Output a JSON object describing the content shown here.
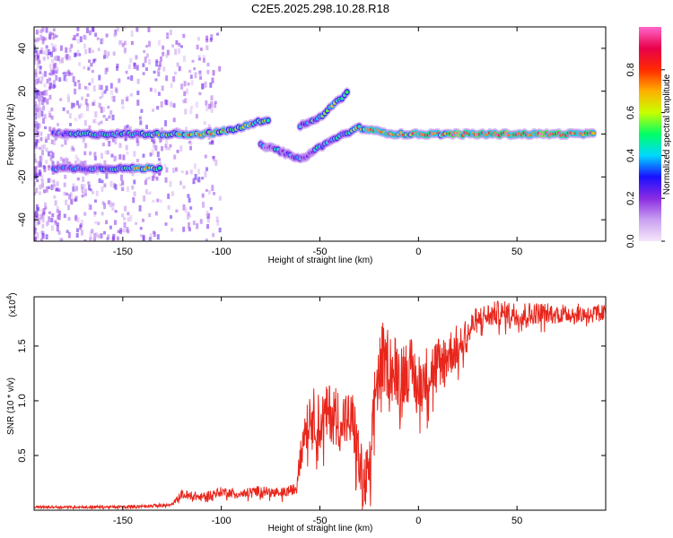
{
  "title": "C2E5.2025.298.10.28.R18",
  "chart_data": [
    {
      "type": "heatmap",
      "name": "spectrogram",
      "xlabel": "Height of straight line (km)",
      "ylabel": "Frequency (Hz)",
      "xlim": [
        -195,
        95
      ],
      "ylim": [
        -50,
        50
      ],
      "xticks": [
        -150,
        -100,
        -50,
        0,
        50
      ],
      "xtick_labels": [
        "-150",
        "-100",
        "-50",
        "0",
        "50"
      ],
      "yticks": [
        -40,
        -20,
        0,
        20,
        40
      ],
      "ytick_labels": [
        "-40",
        "-20",
        "0",
        "20",
        "40"
      ],
      "colorbar": {
        "label": "Normalized spectral amplitude",
        "range": [
          0,
          1
        ],
        "ticks": [
          0,
          0.2,
          0.4,
          0.6,
          0.8
        ],
        "tick_labels": [
          "0.0",
          "0.2",
          "0.4",
          "0.6",
          "0.8"
        ],
        "colors": [
          "#f6e6fa",
          "#c9a0f0",
          "#8a2be2",
          "#1a10ff",
          "#00d8ff",
          "#00ff66",
          "#c8ff00",
          "#ffb000",
          "#ff2a00",
          "#e8004a",
          "#ff66cc"
        ]
      },
      "tracks": [
        {
          "name": "main-carrier",
          "points": [
            [
              -185,
              0,
              0.3
            ],
            [
              -175,
              0,
              0.4
            ],
            [
              -165,
              0,
              0.45
            ],
            [
              -155,
              0,
              0.35
            ],
            [
              -140,
              0,
              0.4
            ],
            [
              -130,
              0,
              0.55
            ],
            [
              -120,
              0,
              0.6
            ],
            [
              -110,
              0,
              0.7
            ],
            [
              -100,
              1,
              0.65
            ],
            [
              -90,
              3,
              0.6
            ],
            [
              -80,
              6,
              0.55
            ],
            [
              -75,
              7,
              0.5
            ]
          ]
        },
        {
          "name": "lower-tone",
          "points": [
            [
              -185,
              -16,
              0.3
            ],
            [
              -175,
              -16,
              0.35
            ],
            [
              -165,
              -16,
              0.3
            ],
            [
              -150,
              -16,
              0.5
            ],
            [
              -140,
              -16,
              0.65
            ],
            [
              -130,
              -16,
              0.55
            ]
          ]
        },
        {
          "name": "rising-branch",
          "points": [
            [
              -60,
              4,
              0.35
            ],
            [
              -50,
              8,
              0.45
            ],
            [
              -45,
              12,
              0.5
            ],
            [
              -40,
              16,
              0.55
            ],
            [
              -35,
              20,
              0.5
            ]
          ]
        },
        {
          "name": "falling-branch",
          "points": [
            [
              -80,
              -5,
              0.3
            ],
            [
              -70,
              -8,
              0.35
            ],
            [
              -60,
              -12,
              0.3
            ],
            [
              -50,
              -6,
              0.35
            ],
            [
              -40,
              -1,
              0.4
            ],
            [
              -30,
              3,
              0.6
            ],
            [
              -20,
              1,
              0.75
            ],
            [
              -10,
              0,
              0.7
            ],
            [
              0,
              0,
              0.8
            ],
            [
              10,
              0,
              0.65
            ],
            [
              20,
              0,
              0.9
            ],
            [
              30,
              0,
              0.85
            ],
            [
              40,
              0,
              0.9
            ],
            [
              50,
              0,
              0.8
            ],
            [
              60,
              0,
              0.85
            ],
            [
              70,
              0,
              0.9
            ],
            [
              80,
              0,
              0.8
            ],
            [
              90,
              0,
              0.8
            ]
          ]
        }
      ]
    },
    {
      "type": "line",
      "name": "snr",
      "xlabel": "Height of straight line (km)",
      "ylabel": "SNR (10 * v/v)",
      "multiplier": "(x10",
      "multiplier_exp": "4",
      "multiplier_close": ")",
      "xlim": [
        -195,
        95
      ],
      "ylim": [
        0,
        1.95
      ],
      "xticks": [
        -150,
        -100,
        -50,
        0,
        50
      ],
      "xtick_labels": [
        "-150",
        "-100",
        "-50",
        "0",
        "50"
      ],
      "yticks": [
        0.5,
        1.0,
        1.5
      ],
      "ytick_labels": [
        "0.5",
        "1.0",
        "1.5"
      ],
      "series": [
        {
          "name": "snr",
          "color": "#e8261c",
          "envelope": [
            [
              -195,
              0.03
            ],
            [
              -150,
              0.03
            ],
            [
              -125,
              0.05
            ],
            [
              -120,
              0.15
            ],
            [
              -110,
              0.12
            ],
            [
              -100,
              0.17
            ],
            [
              -90,
              0.15
            ],
            [
              -80,
              0.18
            ],
            [
              -70,
              0.15
            ],
            [
              -62,
              0.2
            ],
            [
              -60,
              0.6
            ],
            [
              -55,
              0.9
            ],
            [
              -50,
              0.8
            ],
            [
              -45,
              0.9
            ],
            [
              -40,
              0.85
            ],
            [
              -33,
              0.8
            ],
            [
              -28,
              0.2
            ],
            [
              -24,
              0.4
            ],
            [
              -22,
              1.1
            ],
            [
              -18,
              1.4
            ],
            [
              -10,
              1.25
            ],
            [
              -5,
              1.3
            ],
            [
              0,
              1.15
            ],
            [
              10,
              1.35
            ],
            [
              20,
              1.5
            ],
            [
              30,
              1.75
            ],
            [
              40,
              1.8
            ],
            [
              60,
              1.8
            ],
            [
              80,
              1.8
            ],
            [
              95,
              1.8
            ]
          ],
          "noise": [
            [
              -195,
              0.01
            ],
            [
              -125,
              0.015
            ],
            [
              -120,
              0.04
            ],
            [
              -62,
              0.05
            ],
            [
              -60,
              0.25
            ],
            [
              -24,
              0.3
            ],
            [
              -20,
              0.35
            ],
            [
              0,
              0.3
            ],
            [
              20,
              0.2
            ],
            [
              30,
              0.12
            ],
            [
              95,
              0.08
            ]
          ]
        }
      ]
    }
  ]
}
